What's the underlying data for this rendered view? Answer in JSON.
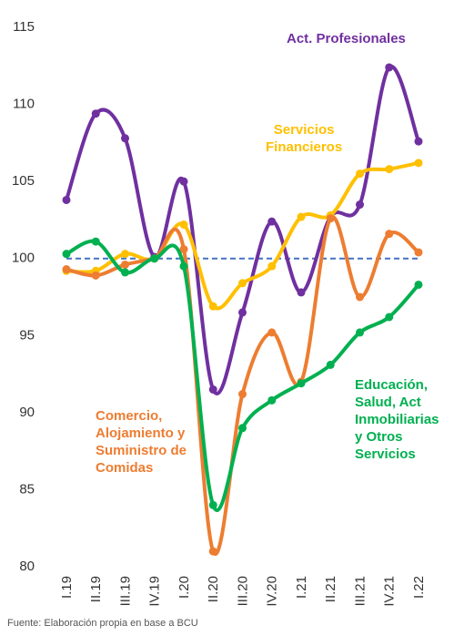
{
  "chart_data": {
    "type": "line",
    "categories": [
      "I.19",
      "II.19",
      "III.19",
      "IV.19",
      "I.20",
      "II.20",
      "III.20",
      "IV.20",
      "I.21",
      "II.21",
      "III.21",
      "IV.21",
      "I.22"
    ],
    "series": [
      {
        "name": "Act. Profesionales",
        "color": "#7030a0",
        "values": [
          103.8,
          109.4,
          107.8,
          100.1,
          105.0,
          91.5,
          96.5,
          102.4,
          97.8,
          102.7,
          103.5,
          112.4,
          107.6
        ]
      },
      {
        "name": "Servicios\nFinancieros",
        "color": "#ffc000",
        "values": [
          99.2,
          99.2,
          100.3,
          100.0,
          102.2,
          96.9,
          98.4,
          99.5,
          102.7,
          102.8,
          105.5,
          105.8,
          106.2
        ]
      },
      {
        "name": "Comercio,\nAlojamiento y\nSuministro de\nComidas",
        "color": "#ed7d31",
        "values": [
          99.3,
          98.9,
          99.6,
          100.0,
          100.6,
          81.0,
          91.2,
          95.2,
          92.0,
          102.6,
          97.5,
          101.6,
          100.4
        ]
      },
      {
        "name": "Educación,\nSalud, Act\nInmobiliarias\ny Otros\nServicios",
        "color": "#00b050",
        "values": [
          100.3,
          101.1,
          99.1,
          100.0,
          99.5,
          84.0,
          89.0,
          90.8,
          91.9,
          93.1,
          95.2,
          96.2,
          98.3
        ]
      }
    ],
    "reference_line": {
      "value": 100,
      "color": "#4472c4"
    },
    "ylim": [
      80,
      115
    ],
    "yticks": [
      80,
      85,
      90,
      95,
      100,
      105,
      110,
      115
    ],
    "source": "Fuente: Elaboración propia en base a BCU"
  }
}
